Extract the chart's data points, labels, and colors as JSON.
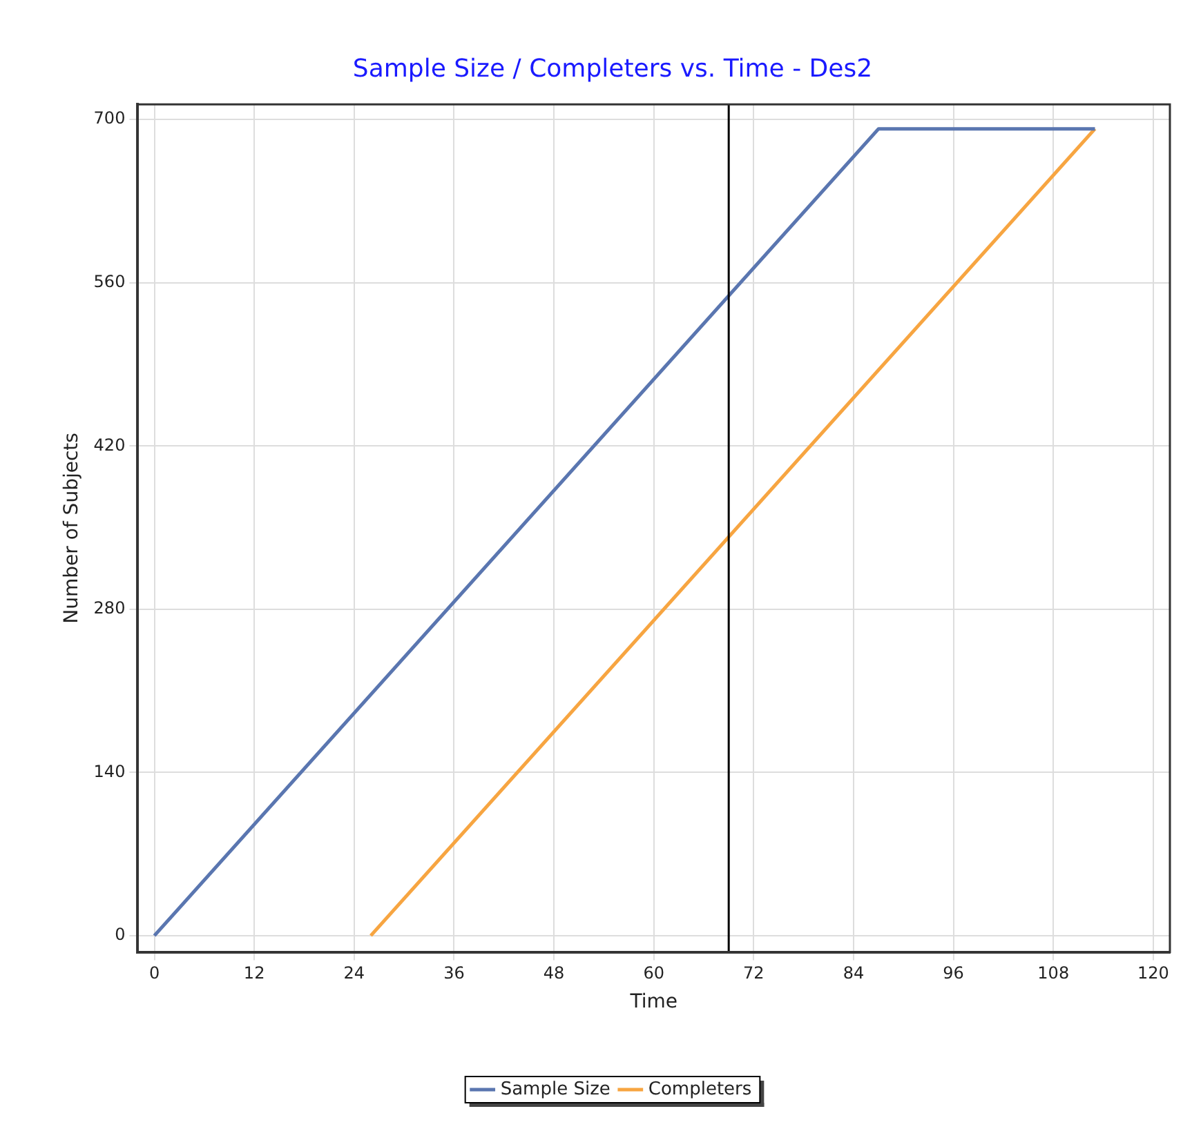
{
  "chart_data": {
    "type": "line",
    "title": "Sample Size / Completers vs. Time - Des2",
    "xlabel": "Time",
    "ylabel": "Number of Subjects",
    "series": [
      {
        "name": "Sample Size",
        "color": "#5a76b0",
        "x": [
          0,
          87,
          113
        ],
        "values": [
          0,
          692,
          692
        ]
      },
      {
        "name": "Completers",
        "color": "#f7a541",
        "x": [
          26,
          113
        ],
        "values": [
          0,
          692
        ]
      }
    ],
    "xlim": [
      -2,
      122
    ],
    "xticks": [
      0,
      12,
      24,
      36,
      48,
      60,
      72,
      84,
      96,
      108,
      120
    ],
    "ylim": [
      -14,
      713
    ],
    "yticks": [
      0,
      140,
      280,
      420,
      560,
      700
    ],
    "ref_lines": [
      {
        "axis": "x",
        "value": 69,
        "color": "#000000"
      }
    ],
    "grid": true,
    "legend": "bottom",
    "marker": "none",
    "line_style": "solid"
  }
}
